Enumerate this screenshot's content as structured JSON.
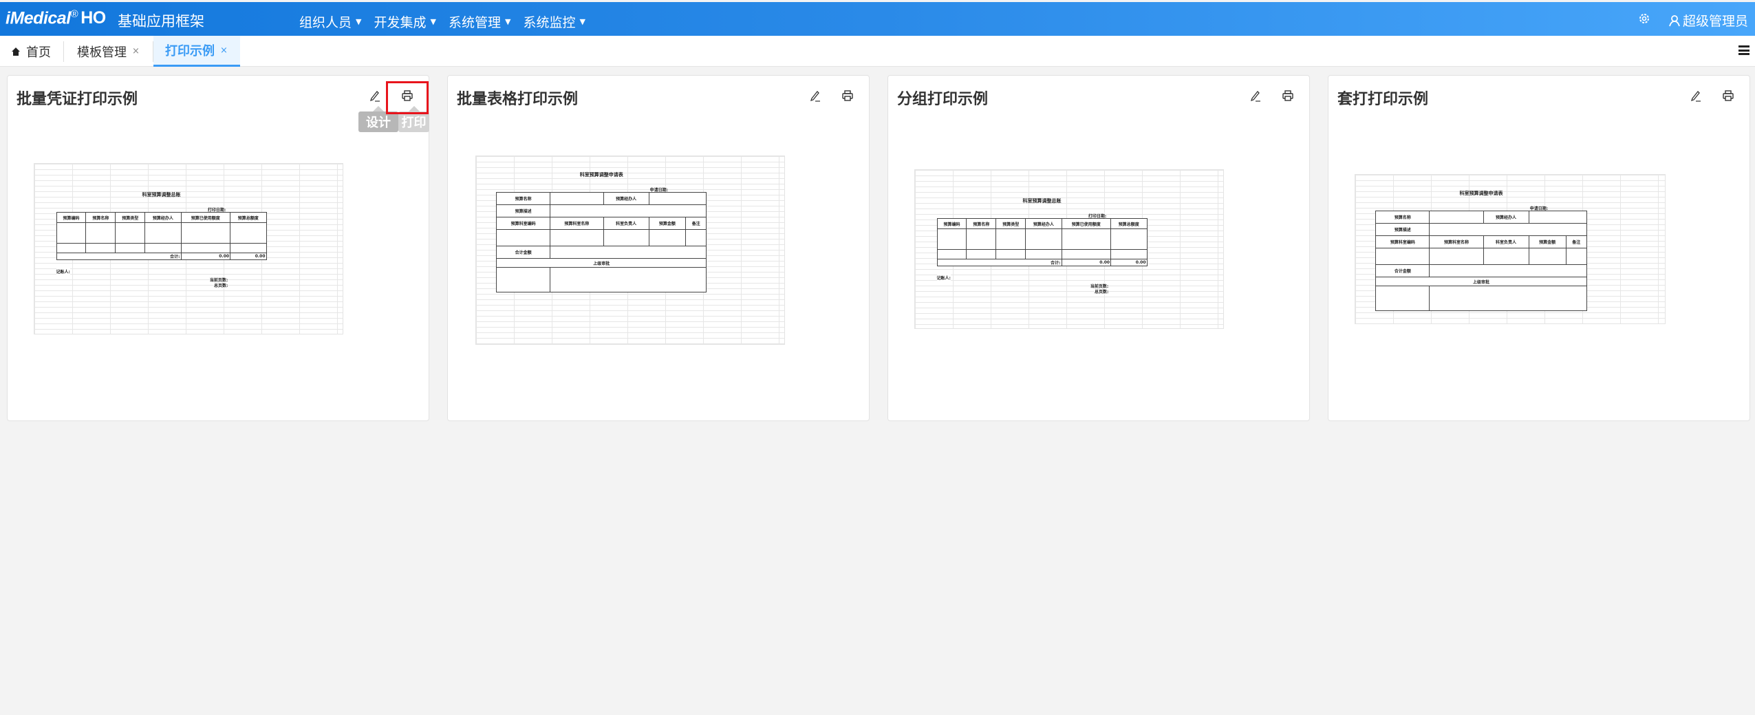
{
  "header": {
    "logo": "iMedical",
    "logo_reg": "®",
    "logo_suffix": "HO",
    "app_title": "基础应用框架",
    "nav": [
      "组织人员",
      "开发集成",
      "系统管理",
      "系统监控"
    ],
    "user": "超级管理员",
    "settings_icon": "gear-icon",
    "user_icon": "user-icon"
  },
  "tabs": [
    {
      "label": "首页",
      "icon": "home-icon",
      "closable": false
    },
    {
      "label": "模板管理",
      "closable": true,
      "close": "×"
    },
    {
      "label": "打印示例",
      "closable": true,
      "close": "×",
      "active": true
    }
  ],
  "cards": [
    {
      "title": "批量凭证打印示例",
      "tooltips": [
        "设计",
        "打印"
      ],
      "highlighted": "print"
    },
    {
      "title": "批量表格打印示例"
    },
    {
      "title": "分组打印示例"
    },
    {
      "title": "套打打印示例"
    }
  ],
  "colors": {
    "header_start": "#1277dc",
    "header_end": "#48a6fa",
    "active_tab": "#3a9bf5",
    "highlight": "#e8141c"
  },
  "previews": [
    {
      "type": "summary",
      "title": "科室预算调整总账",
      "date_label": "打印日期:",
      "headers": [
        "预算编码",
        "预算名称",
        "预算类型",
        "预算经办人",
        "预算已使用额度",
        "预算总额度"
      ],
      "total_label": "合计:",
      "totals": [
        "0.00",
        "0.00"
      ],
      "bookkeeper": "记账人:",
      "current_page": "当前页数:",
      "total_pages": "总页数:"
    },
    {
      "type": "apply",
      "title": "科室预算调整申请表",
      "date_label": "申请日期:",
      "name_label": "预算名称",
      "handler_label": "预算经办人",
      "desc_label": "预算描述",
      "headers": [
        "预算科室编码",
        "预算科室名称",
        "科室负责人",
        "预算金额",
        "备注"
      ],
      "sum_label": "合计金额",
      "approve_label": "上级审批"
    },
    {
      "type": "summary",
      "title": "科室预算调整总账",
      "date_label": "打印日期:",
      "headers": [
        "预算编码",
        "预算名称",
        "预算类型",
        "预算经办人",
        "预算已使用额度",
        "预算总额度"
      ],
      "total_label": "合计:",
      "totals": [
        "0.00",
        "0.00"
      ],
      "bookkeeper": "记账人:",
      "current_page": "当前页数:",
      "total_pages": "总页数:"
    },
    {
      "type": "apply",
      "title": "科室预算调整申请表",
      "date_label": "申请日期:",
      "name_label": "预算名称",
      "handler_label": "预算经办人",
      "desc_label": "预算描述",
      "headers": [
        "预算科室编码",
        "预算科室名称",
        "科室负责人",
        "预算金额",
        "备注"
      ],
      "sum_label": "合计金额",
      "approve_label": "上级审批"
    }
  ]
}
